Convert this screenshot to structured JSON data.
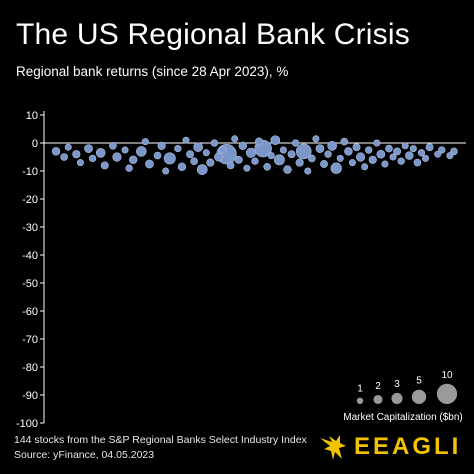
{
  "title": "The US Regional Bank Crisis",
  "subtitle": "Regional bank returns (since 28 Apr 2023), %",
  "footnotes": {
    "line1": "144 stocks from the S&P Regional Banks Select Industry Index",
    "line2": "Source: yFinance, 04.05.2023"
  },
  "brand": {
    "name": "EEAGLI",
    "color": "#f2c300",
    "logo_icon": "eagle-icon"
  },
  "colors": {
    "bubble_fill": "#7b96c8",
    "bubble_stroke": "#a9bde0",
    "size_legend_fill": "#9a9a9a"
  },
  "chart_data": {
    "type": "scatter",
    "subtype": "beeswarm",
    "ylim": [
      -100,
      10
    ],
    "yticks": [
      10,
      0,
      -10,
      -20,
      -30,
      -40,
      -50,
      -60,
      -70,
      -80,
      -90,
      -100
    ],
    "grid": false,
    "zero_line": true,
    "size_legend": {
      "title": "Market Capitalization ($bn)",
      "placement": "bottom-right",
      "values": [
        1,
        2,
        3,
        5,
        10
      ]
    },
    "points": [
      {
        "x": 0.01,
        "y": -3.0,
        "cap": 1.5
      },
      {
        "x": 0.03,
        "y": -5.0,
        "cap": 1.2
      },
      {
        "x": 0.04,
        "y": -1.5,
        "cap": 1.0
      },
      {
        "x": 0.06,
        "y": -4.0,
        "cap": 1.4
      },
      {
        "x": 0.07,
        "y": -7.0,
        "cap": 1.0
      },
      {
        "x": 0.09,
        "y": -2.0,
        "cap": 1.6
      },
      {
        "x": 0.1,
        "y": -5.5,
        "cap": 1.1
      },
      {
        "x": 0.12,
        "y": -3.5,
        "cap": 2.0
      },
      {
        "x": 0.13,
        "y": -8.0,
        "cap": 1.3
      },
      {
        "x": 0.15,
        "y": -1.0,
        "cap": 1.2
      },
      {
        "x": 0.16,
        "y": -5.0,
        "cap": 1.8
      },
      {
        "x": 0.18,
        "y": -2.5,
        "cap": 1.0
      },
      {
        "x": 0.19,
        "y": -9.0,
        "cap": 1.1
      },
      {
        "x": 0.2,
        "y": -6.0,
        "cap": 1.5
      },
      {
        "x": 0.22,
        "y": -3.0,
        "cap": 2.4
      },
      {
        "x": 0.23,
        "y": 0.5,
        "cap": 1.0
      },
      {
        "x": 0.24,
        "y": -7.5,
        "cap": 1.6
      },
      {
        "x": 0.26,
        "y": -4.5,
        "cap": 1.2
      },
      {
        "x": 0.27,
        "y": -1.0,
        "cap": 1.4
      },
      {
        "x": 0.28,
        "y": -10.0,
        "cap": 1.0
      },
      {
        "x": 0.29,
        "y": -5.5,
        "cap": 3.2
      },
      {
        "x": 0.31,
        "y": -2.0,
        "cap": 1.1
      },
      {
        "x": 0.32,
        "y": -8.5,
        "cap": 1.5
      },
      {
        "x": 0.33,
        "y": 1.0,
        "cap": 1.0
      },
      {
        "x": 0.34,
        "y": -4.0,
        "cap": 1.3
      },
      {
        "x": 0.35,
        "y": -6.5,
        "cap": 1.2
      },
      {
        "x": 0.36,
        "y": -1.5,
        "cap": 2.0
      },
      {
        "x": 0.37,
        "y": -9.5,
        "cap": 2.5
      },
      {
        "x": 0.38,
        "y": -3.5,
        "cap": 1.0
      },
      {
        "x": 0.39,
        "y": -7.0,
        "cap": 1.4
      },
      {
        "x": 0.4,
        "y": 0.0,
        "cap": 1.1
      },
      {
        "x": 0.41,
        "y": -5.0,
        "cap": 1.6
      },
      {
        "x": 0.42,
        "y": -2.5,
        "cap": 1.0
      },
      {
        "x": 0.43,
        "y": -4.0,
        "cap": 9.5
      },
      {
        "x": 0.44,
        "y": -8.0,
        "cap": 1.2
      },
      {
        "x": 0.45,
        "y": 1.5,
        "cap": 1.0
      },
      {
        "x": 0.46,
        "y": -6.0,
        "cap": 1.3
      },
      {
        "x": 0.47,
        "y": -1.0,
        "cap": 1.5
      },
      {
        "x": 0.48,
        "y": -9.0,
        "cap": 1.0
      },
      {
        "x": 0.49,
        "y": -3.5,
        "cap": 2.2
      },
      {
        "x": 0.5,
        "y": -6.5,
        "cap": 1.1
      },
      {
        "x": 0.51,
        "y": 0.5,
        "cap": 1.4
      },
      {
        "x": 0.52,
        "y": -2.0,
        "cap": 7.0
      },
      {
        "x": 0.53,
        "y": -8.5,
        "cap": 1.2
      },
      {
        "x": 0.54,
        "y": -4.5,
        "cap": 1.0
      },
      {
        "x": 0.55,
        "y": 1.0,
        "cap": 2.0
      },
      {
        "x": 0.56,
        "y": -6.0,
        "cap": 2.6
      },
      {
        "x": 0.57,
        "y": -2.5,
        "cap": 1.0
      },
      {
        "x": 0.58,
        "y": -9.5,
        "cap": 1.5
      },
      {
        "x": 0.59,
        "y": -4.0,
        "cap": 1.3
      },
      {
        "x": 0.6,
        "y": 0.0,
        "cap": 1.1
      },
      {
        "x": 0.61,
        "y": -7.0,
        "cap": 1.4
      },
      {
        "x": 0.62,
        "y": -3.0,
        "cap": 5.5
      },
      {
        "x": 0.63,
        "y": -10.0,
        "cap": 1.0
      },
      {
        "x": 0.64,
        "y": -5.5,
        "cap": 1.2
      },
      {
        "x": 0.65,
        "y": 1.5,
        "cap": 1.0
      },
      {
        "x": 0.66,
        "y": -2.0,
        "cap": 1.6
      },
      {
        "x": 0.67,
        "y": -7.5,
        "cap": 1.3
      },
      {
        "x": 0.68,
        "y": -4.0,
        "cap": 1.1
      },
      {
        "x": 0.69,
        "y": -1.0,
        "cap": 2.0
      },
      {
        "x": 0.7,
        "y": -9.0,
        "cap": 2.8
      },
      {
        "x": 0.71,
        "y": -5.5,
        "cap": 1.0
      },
      {
        "x": 0.72,
        "y": 0.5,
        "cap": 1.2
      },
      {
        "x": 0.73,
        "y": -3.0,
        "cap": 1.5
      },
      {
        "x": 0.74,
        "y": -7.0,
        "cap": 1.0
      },
      {
        "x": 0.75,
        "y": -1.5,
        "cap": 1.3
      },
      {
        "x": 0.76,
        "y": -5.0,
        "cap": 1.8
      },
      {
        "x": 0.77,
        "y": -8.5,
        "cap": 1.0
      },
      {
        "x": 0.78,
        "y": -2.5,
        "cap": 1.1
      },
      {
        "x": 0.79,
        "y": -6.0,
        "cap": 1.4
      },
      {
        "x": 0.8,
        "y": 0.0,
        "cap": 1.0
      },
      {
        "x": 0.81,
        "y": -4.0,
        "cap": 1.6
      },
      {
        "x": 0.82,
        "y": -7.5,
        "cap": 1.0
      },
      {
        "x": 0.83,
        "y": -2.0,
        "cap": 1.2
      },
      {
        "x": 0.84,
        "y": -5.0,
        "cap": 1.0
      },
      {
        "x": 0.85,
        "y": -3.0,
        "cap": 1.3
      },
      {
        "x": 0.86,
        "y": -6.5,
        "cap": 1.1
      },
      {
        "x": 0.87,
        "y": -1.0,
        "cap": 1.0
      },
      {
        "x": 0.88,
        "y": -4.5,
        "cap": 1.5
      },
      {
        "x": 0.89,
        "y": -2.0,
        "cap": 1.0
      },
      {
        "x": 0.9,
        "y": -7.0,
        "cap": 1.2
      },
      {
        "x": 0.91,
        "y": -3.5,
        "cap": 1.1
      },
      {
        "x": 0.92,
        "y": -5.5,
        "cap": 1.0
      },
      {
        "x": 0.93,
        "y": -1.5,
        "cap": 1.3
      },
      {
        "x": 0.95,
        "y": -4.0,
        "cap": 1.0
      },
      {
        "x": 0.96,
        "y": -2.5,
        "cap": 1.1
      },
      {
        "x": 0.98,
        "y": -4.5,
        "cap": 1.0
      },
      {
        "x": 0.99,
        "y": -3.0,
        "cap": 1.2
      }
    ]
  }
}
